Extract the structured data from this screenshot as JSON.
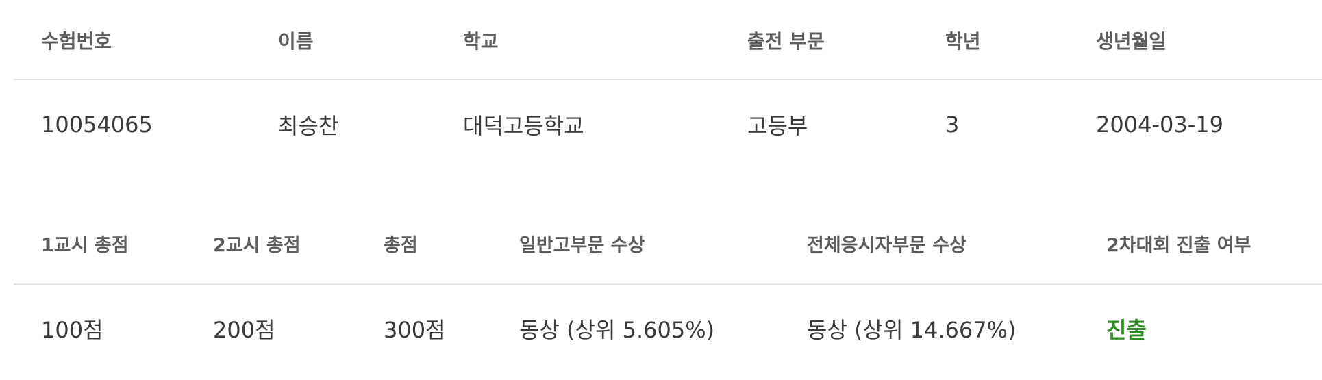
{
  "info_table": {
    "headers": [
      "수험번호",
      "이름",
      "학교",
      "출전 부문",
      "학년",
      "생년월일"
    ],
    "row": [
      "10054065",
      "최승찬",
      "대덕고등학교",
      "고등부",
      "3",
      "2004-03-19"
    ]
  },
  "score_table": {
    "headers": [
      "1교시 총점",
      "2교시 총점",
      "총점",
      "일반고부문 수상",
      "전체응시자부문 수상",
      "2차대회 진출 여부"
    ],
    "row": [
      "100점",
      "200점",
      "300점",
      "동상 (상위 5.605%)",
      "동상 (상위 14.667%)",
      "진출"
    ]
  },
  "colors": {
    "header_text": "#5d5d5d",
    "body_text": "#3a3a3a",
    "divider": "#e3e3e3",
    "advance_status": "#2e8a22"
  }
}
